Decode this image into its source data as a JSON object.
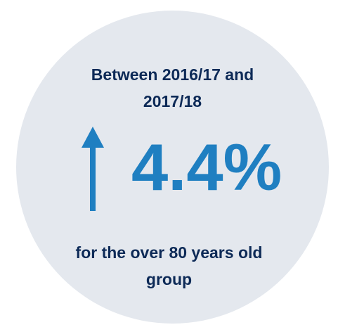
{
  "heading": {
    "line1": "Between 2016/17 and",
    "line2": "2017/18"
  },
  "stat": {
    "direction_icon": "up-arrow-icon",
    "value": "4.4%"
  },
  "footer": {
    "line1": "for the over 80 years old",
    "line2": "group"
  },
  "colors": {
    "circle_bg": "#e4e8ee",
    "heading_text": "#0d2a57",
    "accent": "#1f7fc1"
  }
}
